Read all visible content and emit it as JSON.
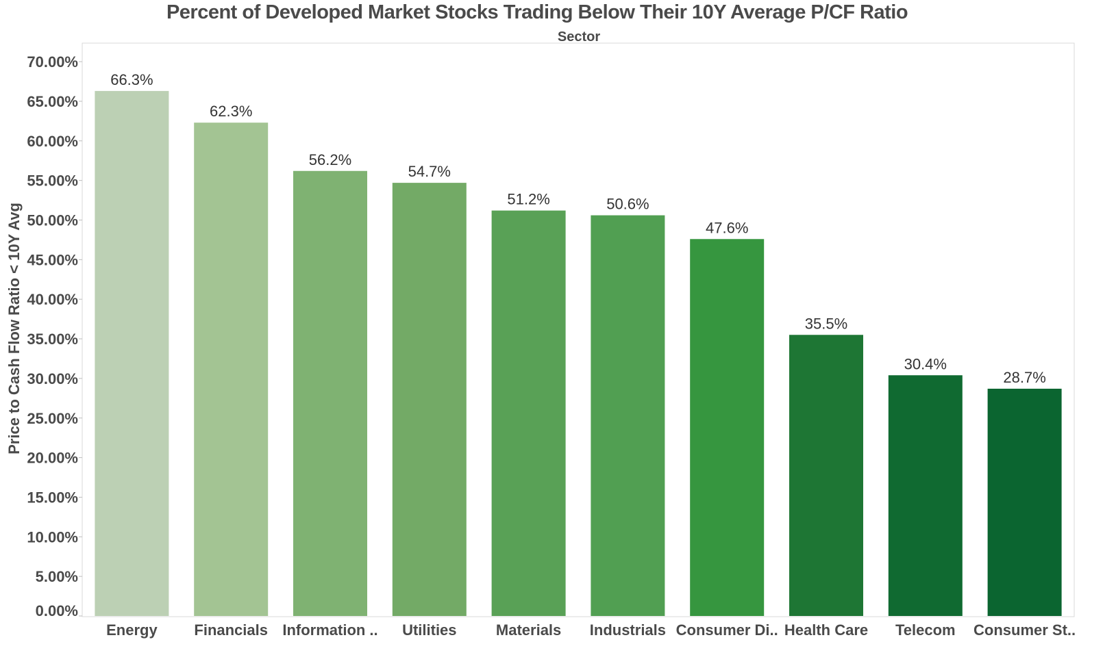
{
  "chart_data": {
    "type": "bar",
    "title": "Percent of Developed Market Stocks Trading Below Their 10Y Average P/CF Ratio",
    "subtitle": "Sector",
    "xlabel": "",
    "ylabel": "Price to Cash Flow Ratio < 10Y Avg",
    "ylim": [
      0,
      72.5
    ],
    "yticks": [
      0,
      5,
      10,
      15,
      20,
      25,
      30,
      35,
      40,
      45,
      50,
      55,
      60,
      65,
      70
    ],
    "ytick_labels": [
      "0.00%",
      "5.00%",
      "10.00%",
      "15.00%",
      "20.00%",
      "25.00%",
      "30.00%",
      "35.00%",
      "40.00%",
      "45.00%",
      "50.00%",
      "55.00%",
      "60.00%",
      "65.00%",
      "70.00%"
    ],
    "categories": [
      "Energy",
      "Financials",
      "Information ..",
      "Utilities",
      "Materials",
      "Industrials",
      "Consumer Di..",
      "Health Care",
      "Telecom",
      "Consumer St.."
    ],
    "values": [
      66.3,
      62.3,
      56.2,
      54.7,
      51.2,
      50.6,
      47.6,
      35.5,
      30.4,
      28.7
    ],
    "value_labels": [
      "66.3%",
      "62.3%",
      "56.2%",
      "54.7%",
      "51.2%",
      "50.6%",
      "47.6%",
      "35.5%",
      "30.4%",
      "28.7%"
    ],
    "colors": [
      "#bcd0b4",
      "#a3c493",
      "#7fb272",
      "#73aa66",
      "#59a156",
      "#519f52",
      "#36963f",
      "#1e7634",
      "#106a31",
      "#0b6530"
    ],
    "grid": false,
    "legend": "none"
  }
}
